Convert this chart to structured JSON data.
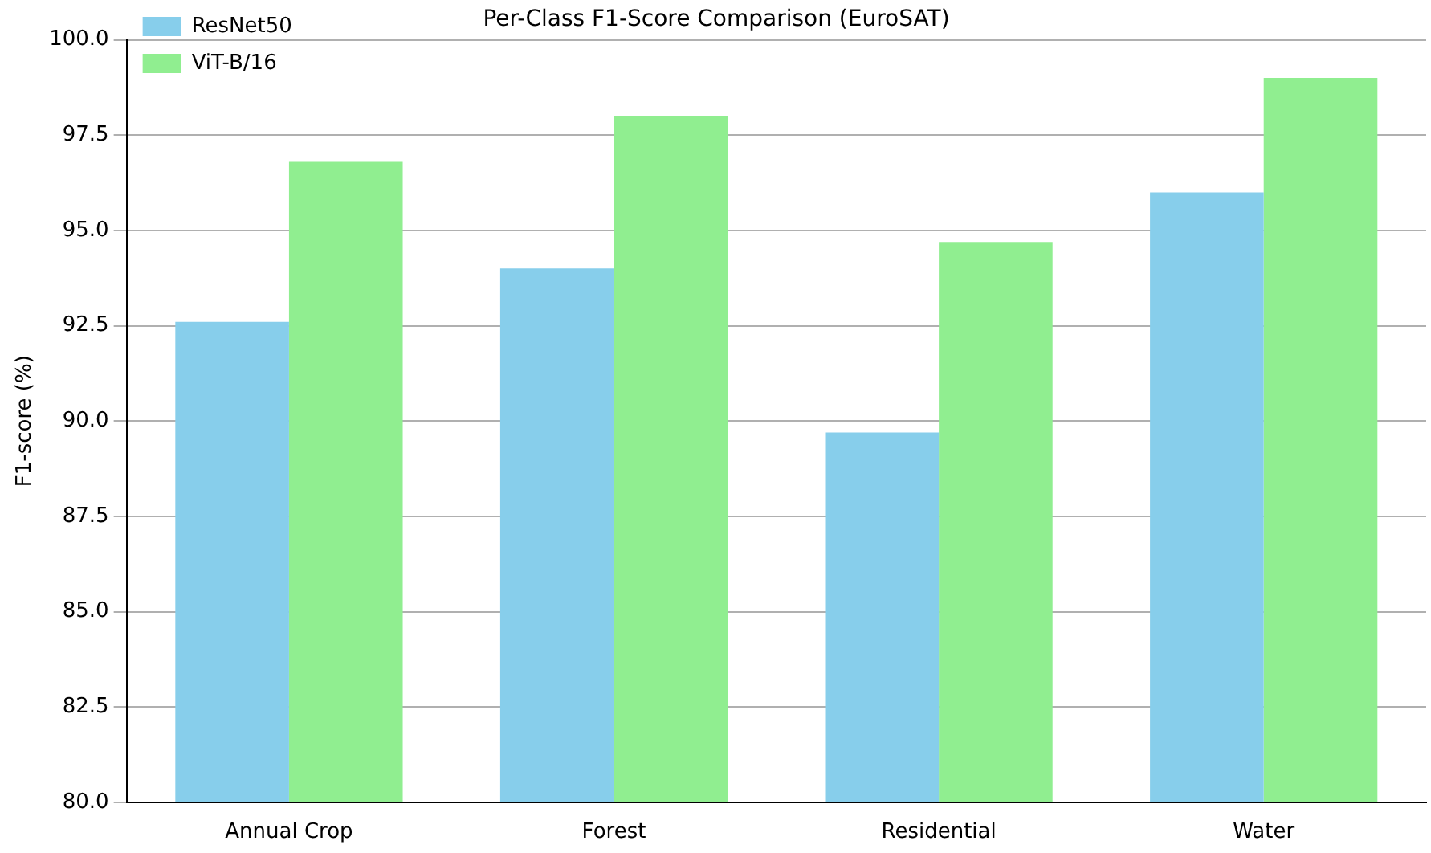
{
  "chart_data": {
    "type": "bar",
    "title": "Per-Class F1-Score Comparison (EuroSAT)",
    "ylabel": "F1-score (%)",
    "categories": [
      "Annual Crop",
      "Forest",
      "Residential",
      "Water"
    ],
    "series": [
      {
        "name": "ResNet50",
        "color": "#87ceeb",
        "values": [
          92.6,
          94.0,
          89.7,
          96.0
        ]
      },
      {
        "name": "ViT-B/16",
        "color": "#90ee90",
        "values": [
          96.8,
          98.0,
          94.7,
          99.0
        ]
      }
    ],
    "ylim": [
      80,
      100
    ],
    "yticks": [
      {
        "value": 80,
        "label": "80.0"
      },
      {
        "value": 82.5,
        "label": "82.5"
      },
      {
        "value": 85,
        "label": "85.0"
      },
      {
        "value": 87.5,
        "label": "87.5"
      },
      {
        "value": 90,
        "label": "90.0"
      },
      {
        "value": 92.5,
        "label": "92.5"
      },
      {
        "value": 95,
        "label": "95.0"
      },
      {
        "value": 97.5,
        "label": "97.5"
      },
      {
        "value": 100,
        "label": "100.0"
      }
    ],
    "grid": "y",
    "legend": "top left"
  }
}
